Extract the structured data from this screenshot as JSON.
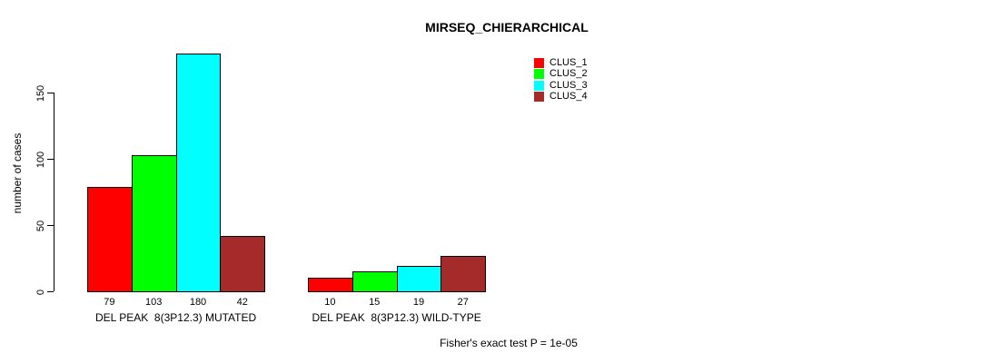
{
  "chart_data": {
    "type": "bar",
    "title": "MIRSEQ_CHIERARCHICAL",
    "ylabel": "number of cases",
    "xlabel": "",
    "categories": [
      "DEL PEAK  8(3P12.3) MUTATED",
      "DEL PEAK  8(3P12.3) WILD-TYPE"
    ],
    "series": [
      {
        "name": "CLUS_1",
        "color": "#ff0000",
        "values": [
          79,
          10
        ]
      },
      {
        "name": "CLUS_2",
        "color": "#00ff00",
        "values": [
          103,
          15
        ]
      },
      {
        "name": "CLUS_3",
        "color": "#00ffff",
        "values": [
          180,
          19
        ]
      },
      {
        "name": "CLUS_4",
        "color": "#a52a2a",
        "values": [
          42,
          27
        ]
      }
    ],
    "yticks": [
      0,
      50,
      100,
      150
    ],
    "ylim": [
      0,
      187
    ],
    "grid": false,
    "legend_position": "top-right",
    "bar_value_labels": true,
    "annotation": "Fisher's exact test P = 1e-05"
  }
}
